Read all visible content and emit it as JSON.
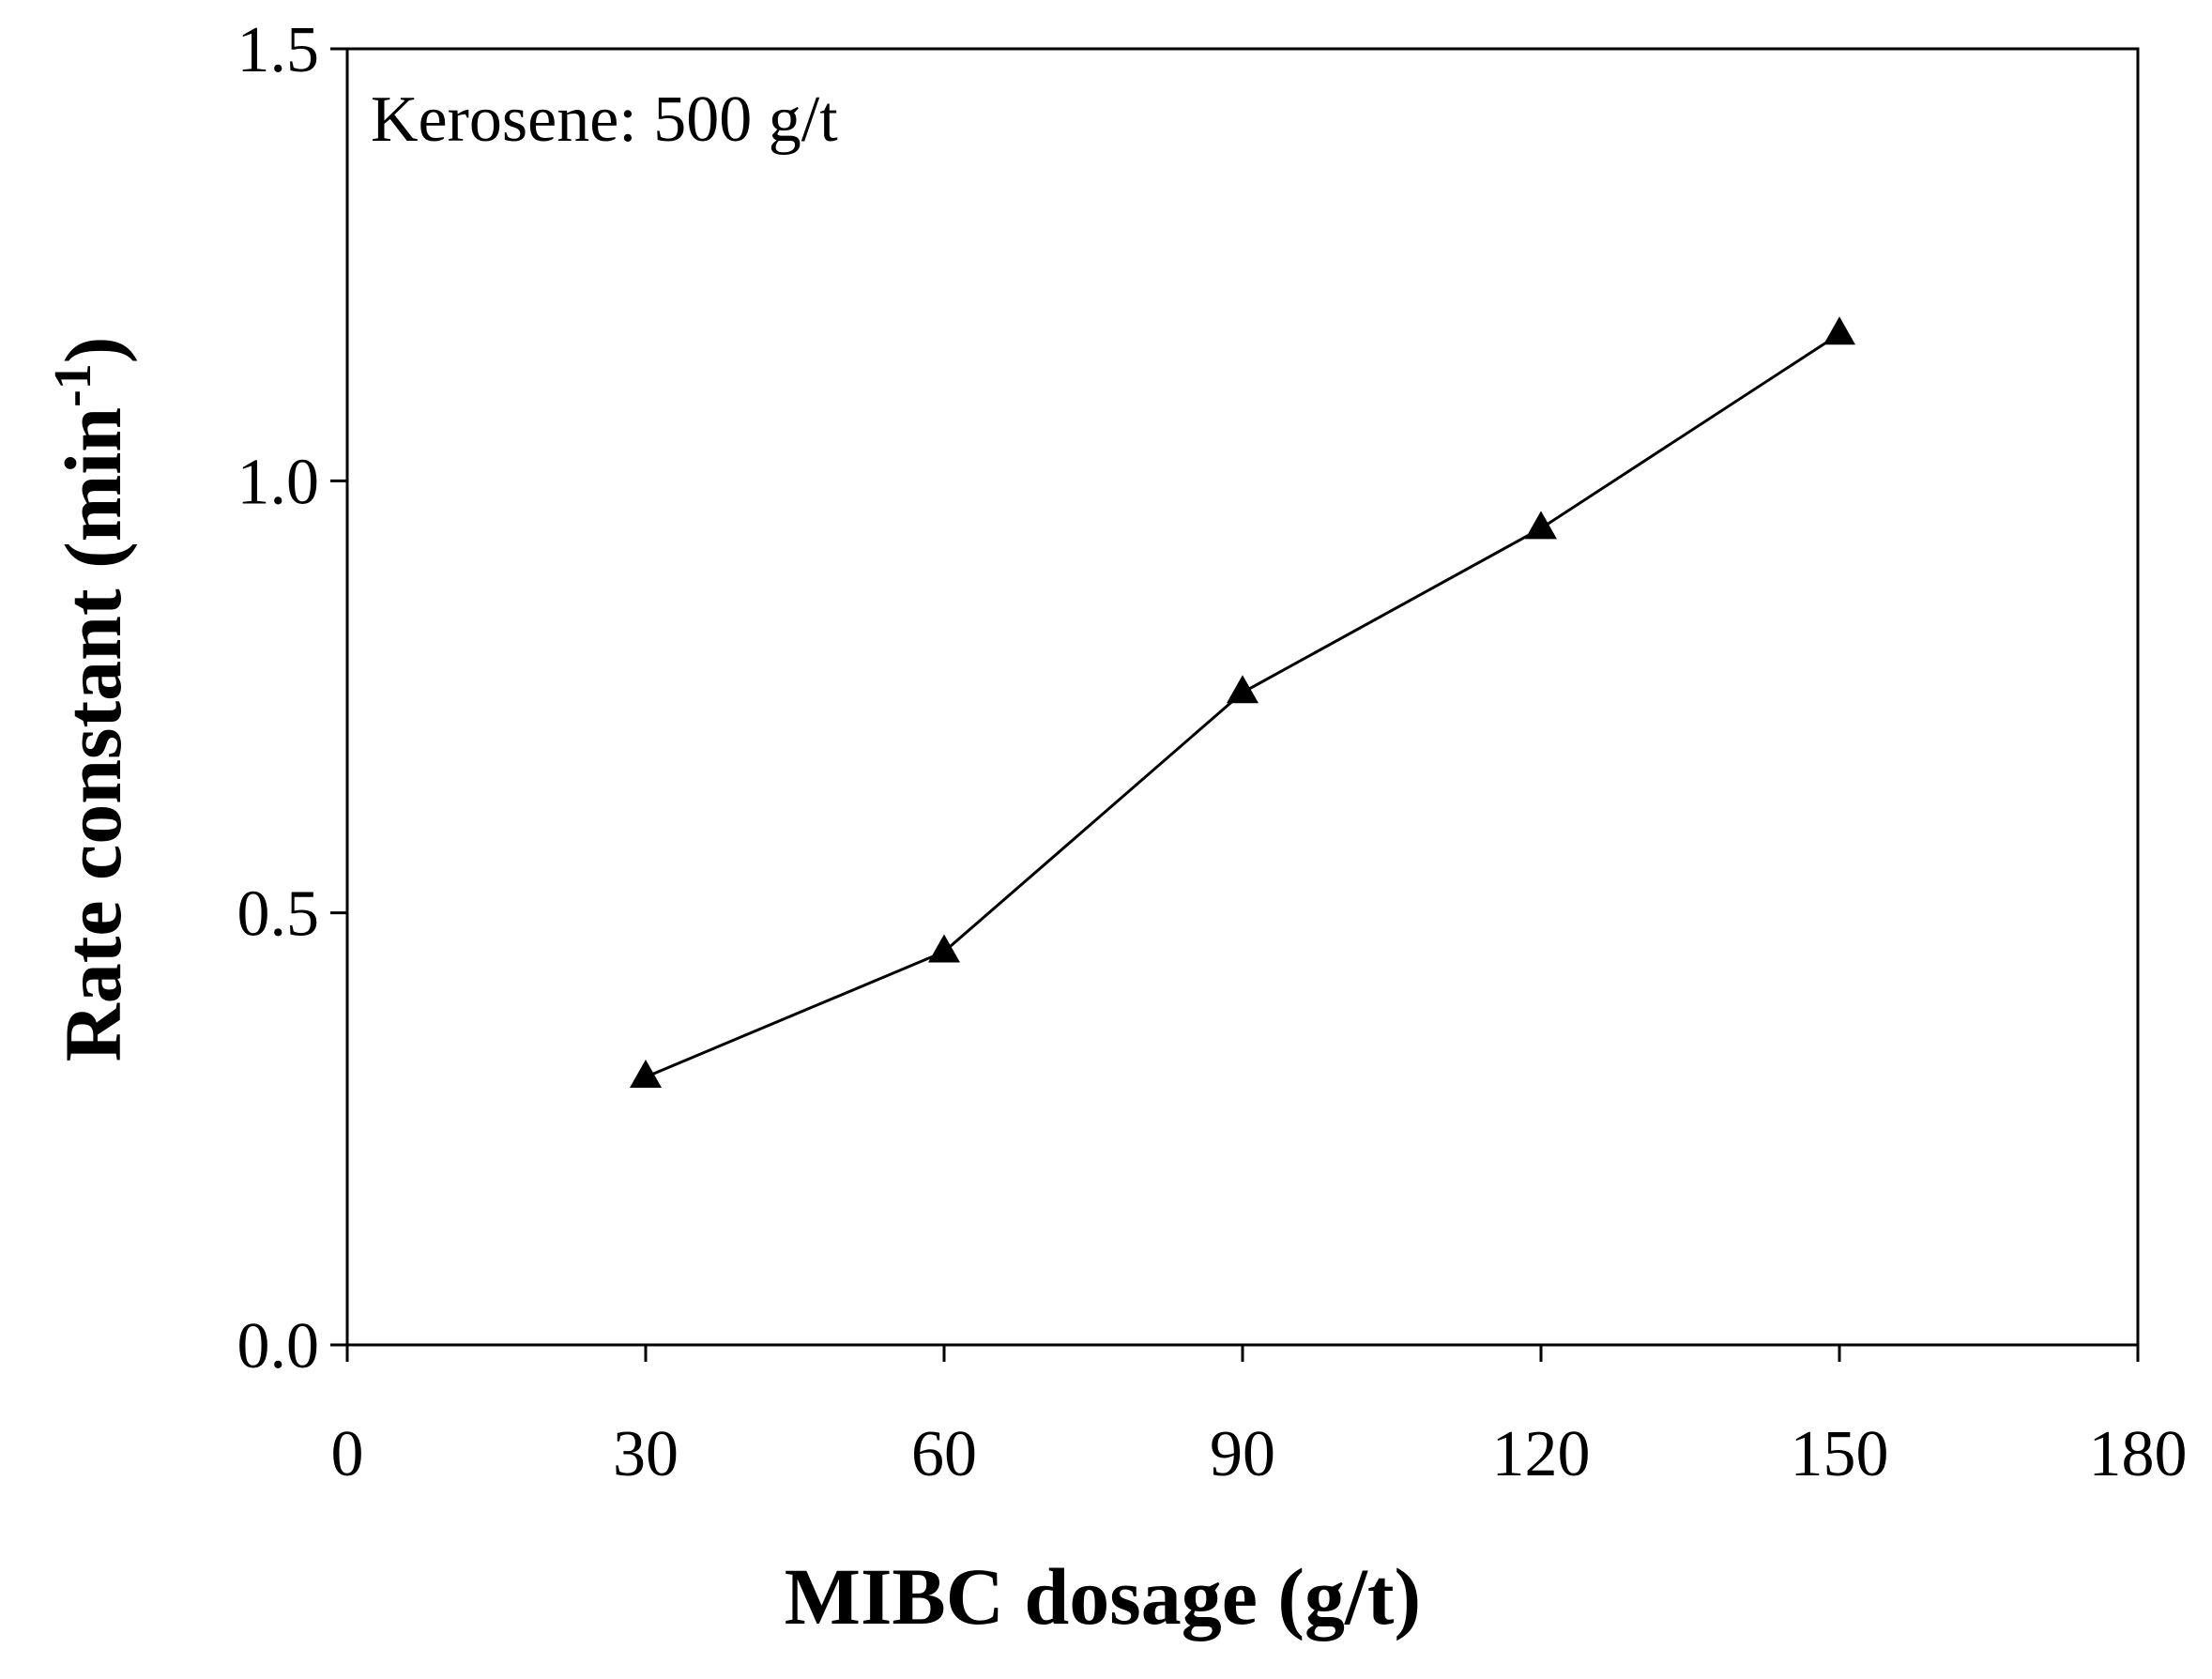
{
  "chart_data": {
    "type": "line",
    "title": "",
    "xlabel": "MIBC dosage (g/t)",
    "ylabel": "Rate constant (min",
    "ylabel_superscript": "-1",
    "ylabel_close": ")",
    "xlim": [
      0,
      180
    ],
    "ylim": [
      0.0,
      1.5
    ],
    "x_ticks": [
      "0",
      "30",
      "60",
      "90",
      "120",
      "150",
      "180"
    ],
    "y_ticks": [
      "0.0",
      "0.5",
      "1.0",
      "1.5"
    ],
    "grid": false,
    "annotation": "Kerosene: 500 g/t",
    "marker": "filled-triangle",
    "series": [
      {
        "name": "Kerosene: 500 g/t",
        "x": [
          30,
          60,
          90,
          120,
          150
        ],
        "y": [
          0.31,
          0.455,
          0.755,
          0.945,
          1.17
        ]
      }
    ]
  }
}
